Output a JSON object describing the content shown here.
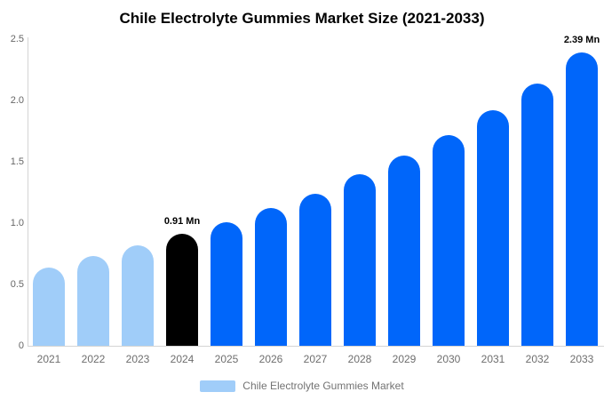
{
  "chart": {
    "title": "Chile Electrolyte Gummies Market Size (2021-2033)"
  },
  "legend": {
    "label": "Chile Electrolyte Gummies Market"
  },
  "chart_data": {
    "type": "bar",
    "title": "Chile Electrolyte Gummies Market Size (2021-2033)",
    "unit": "Mn",
    "categories": [
      "2021",
      "2022",
      "2023",
      "2024",
      "2025",
      "2026",
      "2027",
      "2028",
      "2029",
      "2030",
      "2031",
      "2032",
      "2033"
    ],
    "values": [
      0.64,
      0.73,
      0.82,
      0.91,
      1.01,
      1.12,
      1.24,
      1.4,
      1.55,
      1.72,
      1.92,
      2.14,
      2.39
    ],
    "bar_color_keys": [
      "light",
      "light",
      "light",
      "highlight",
      "primary",
      "primary",
      "primary",
      "primary",
      "primary",
      "primary",
      "primary",
      "primary",
      "primary"
    ],
    "colors": {
      "light": "#a0cdf9",
      "primary": "#0066fa",
      "highlight": "#000000",
      "axis": "#d4d4d4"
    },
    "annotations": [
      {
        "category": "2024",
        "text": "0.91 Mn"
      },
      {
        "category": "2033",
        "text": "2.39 Mn"
      }
    ],
    "xlabel": "",
    "ylabel": "",
    "ylim": [
      0,
      2.5
    ],
    "yticks": [
      "0",
      "0.5",
      "1.0",
      "1.5",
      "2.0",
      "2.5"
    ],
    "grid": false,
    "legend_position": "bottom",
    "legend_label": "Chile Electrolyte Gummies Market"
  }
}
